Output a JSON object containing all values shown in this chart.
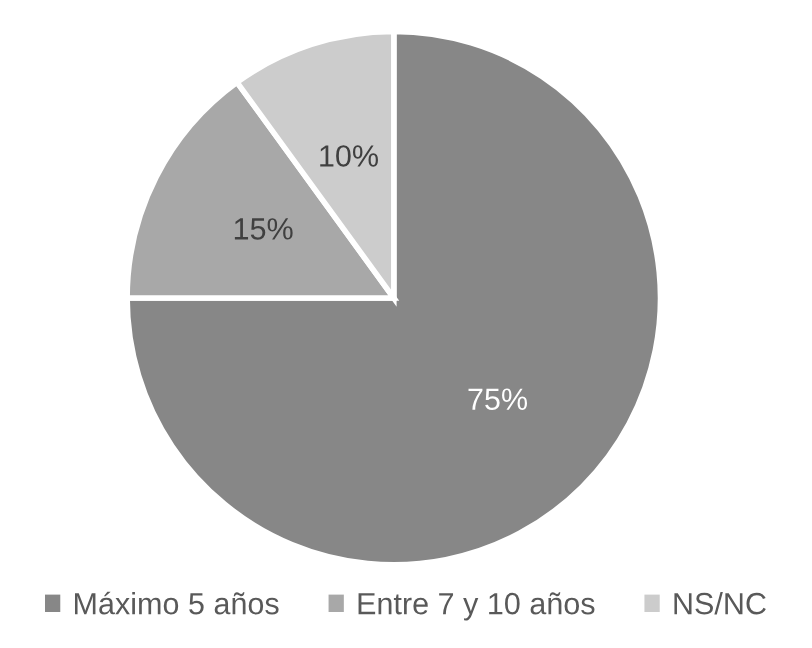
{
  "chart_data": {
    "type": "pie",
    "categories": [
      "Máximo 5 años",
      "Entre 7 y 10 años",
      "NS/NC"
    ],
    "values": [
      75,
      15,
      10
    ],
    "colors": [
      "#878787",
      "#a8a8a8",
      "#cccccc"
    ],
    "value_labels": [
      "75%",
      "15%",
      "10%"
    ],
    "legend": "bottom"
  }
}
